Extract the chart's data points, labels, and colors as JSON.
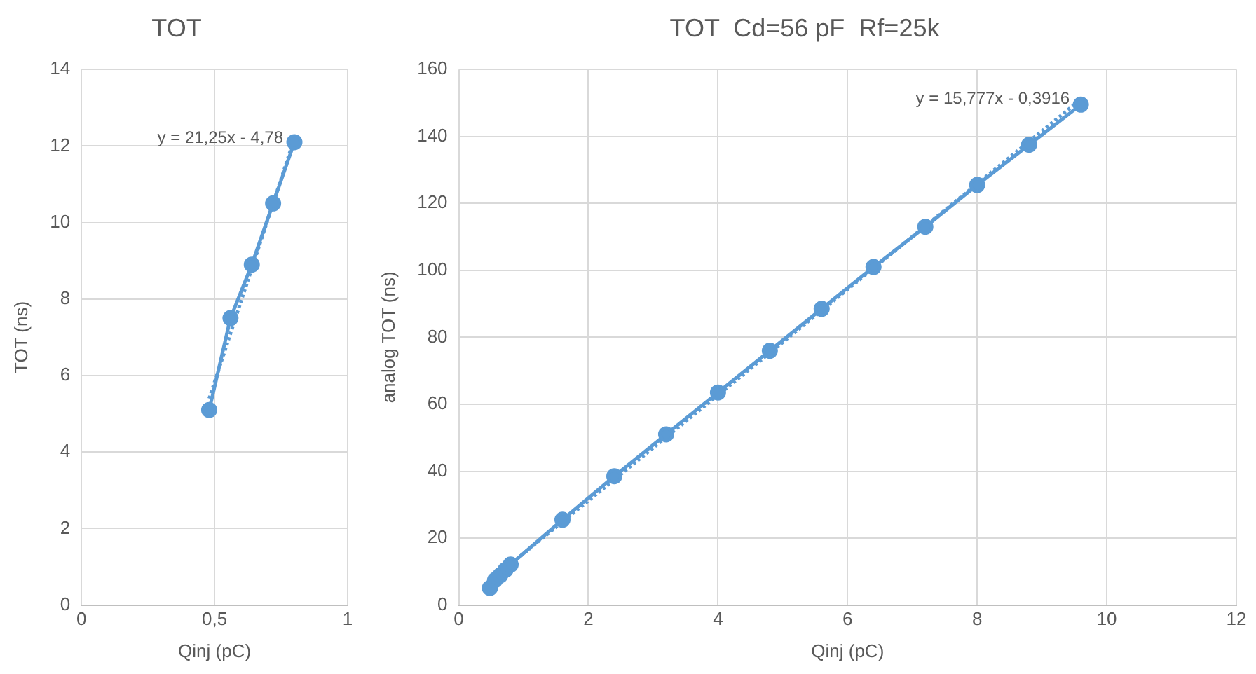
{
  "chart_data": [
    {
      "type": "line",
      "title": "TOT",
      "xlabel": "Qinj (pC)",
      "ylabel": "TOT (ns)",
      "xlim": [
        0,
        1
      ],
      "xticks": [
        0,
        {
          "value": 0.5,
          "label": "0,5"
        },
        1
      ],
      "ylim": [
        0,
        14
      ],
      "yticks": [
        0,
        2,
        4,
        6,
        8,
        10,
        12,
        14
      ],
      "grid": true,
      "legend": false,
      "x": [
        0.48,
        0.56,
        0.64,
        0.72,
        0.8
      ],
      "series": [
        {
          "color": "#5b9bd5",
          "marker": "circle",
          "line_style": "solid",
          "values": [
            5.1,
            7.5,
            8.9,
            10.5,
            12.1
          ]
        },
        {
          "color": "#5b9bd5",
          "marker": "none",
          "line_style": "dotted",
          "x": [
            0.48,
            0.8
          ],
          "values": [
            5.4,
            12.2
          ]
        }
      ],
      "annotations": [
        {
          "text": "y = 21,25x - 4,78",
          "x": 0.8,
          "y": 12.2
        }
      ]
    },
    {
      "type": "line",
      "title": "TOT  Cd=56 pF  Rf=25k",
      "xlabel": "Qinj (pC)",
      "ylabel": "analog TOT (ns)",
      "xlim": [
        0,
        12
      ],
      "xticks": [
        0,
        2,
        4,
        6,
        8,
        10,
        12
      ],
      "ylim": [
        0,
        160
      ],
      "yticks": [
        0,
        20,
        40,
        60,
        80,
        100,
        120,
        140,
        160
      ],
      "grid": true,
      "legend": false,
      "x": [
        0.48,
        0.56,
        0.64,
        0.72,
        0.8,
        1.6,
        2.4,
        3.2,
        4,
        4.8,
        5.6,
        6.4,
        7.2,
        8,
        8.8,
        9.6
      ],
      "series": [
        {
          "color": "#5b9bd5",
          "marker": "circle",
          "line_style": "solid",
          "values": [
            5.1,
            7.5,
            8.9,
            10.5,
            12.1,
            25.5,
            38.5,
            51,
            63.5,
            76,
            88.5,
            101,
            113,
            125.5,
            137.5,
            149.5
          ]
        },
        {
          "color": "#5b9bd5",
          "marker": "none",
          "line_style": "dotted",
          "x": [
            0.48,
            9.6
          ],
          "values": [
            7.2,
            151.1
          ]
        }
      ],
      "annotations": [
        {
          "text": "y = 15,777x - 0,3916",
          "x": 9.6,
          "y": 151.1
        }
      ]
    }
  ]
}
